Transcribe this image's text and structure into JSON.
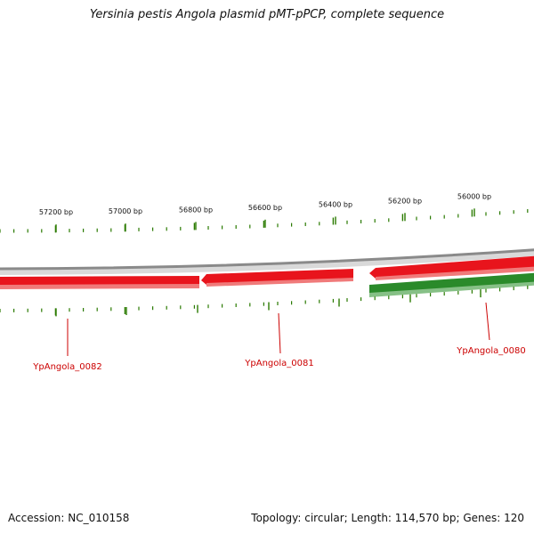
{
  "title": "Yersinia pestis Angola plasmid pMT-pPCP, complete sequence",
  "accession_text": "Accession: NC_010158",
  "topology_text": "Topology: circular; Length: 114,570 bp; Genes: 120",
  "scale": {
    "bp_labels": [
      "57200 bp",
      "57000 bp",
      "56800 bp",
      "56600 bp",
      "56400 bp",
      "56200 bp",
      "56000 bp"
    ],
    "tick_color": "#2a7a00"
  },
  "genes": [
    {
      "name": "YpAngola_0082",
      "strand": "reverse",
      "color": "#e8141c"
    },
    {
      "name": "YpAngola_0081",
      "strand": "reverse",
      "color": "#e8141c"
    },
    {
      "name": "YpAngola_0080",
      "strand": "forward",
      "color": "#2a8a2a"
    }
  ],
  "colors": {
    "backbone": "#8a8a8a",
    "reverse_gene": "#e8141c",
    "forward_gene": "#2a8a2a",
    "label": "#cc0000"
  }
}
